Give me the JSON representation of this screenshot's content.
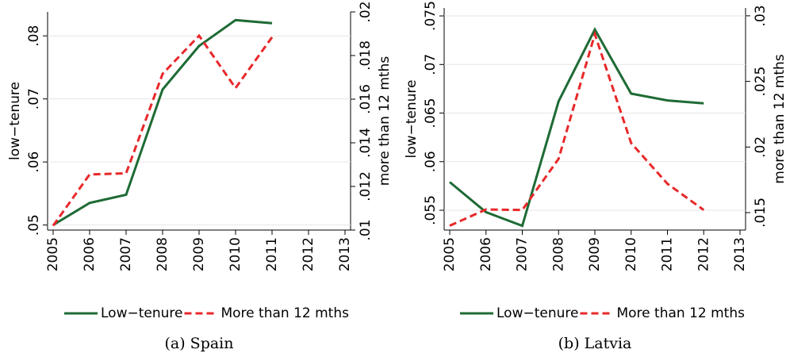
{
  "chart_data": [
    {
      "type": "line",
      "caption": "(a) Spain",
      "ylabel": "low−tenure",
      "y2label": "more than 12 mths",
      "x": [
        2005,
        2006,
        2007,
        2008,
        2009,
        2010,
        2011
      ],
      "xlim": [
        2005,
        2013
      ],
      "xticks": [
        2005,
        2006,
        2007,
        2008,
        2009,
        2010,
        2011,
        2012,
        2013
      ],
      "ylim": [
        0.0492,
        0.0838
      ],
      "yticks": [
        {
          "value": 0.05,
          "label": ".05"
        },
        {
          "value": 0.06,
          "label": ".06"
        },
        {
          "value": 0.07,
          "label": ".07"
        },
        {
          "value": 0.08,
          "label": ".08"
        }
      ],
      "y2lim": [
        0.01,
        0.02
      ],
      "y2ticks": [
        {
          "value": 0.01,
          "label": ".01"
        },
        {
          "value": 0.012,
          "label": ".012"
        },
        {
          "value": 0.014,
          "label": ".014"
        },
        {
          "value": 0.016,
          "label": ".016"
        },
        {
          "value": 0.018,
          "label": ".018"
        },
        {
          "value": 0.02,
          "label": ".02"
        }
      ],
      "grid": true,
      "series": [
        {
          "name": "Low−tenure",
          "color": "#1e6b35",
          "values": [
            0.05,
            0.0535,
            0.0548,
            0.0715,
            0.0784,
            0.0825,
            0.082
          ]
        },
        {
          "name": "More than 12 mths",
          "color": "#e8282a",
          "axis": "y2",
          "dashed": true,
          "values": [
            0.0102,
            0.01255,
            0.0126,
            0.01716,
            0.01891,
            0.01651,
            0.01884
          ]
        }
      ]
    },
    {
      "type": "line",
      "caption": "(b) Latvia",
      "ylabel": "low−tenure",
      "y2label": "more than 12 mths",
      "x": [
        2005,
        2006,
        2007,
        2008,
        2009,
        2010,
        2011,
        2012
      ],
      "xlim": [
        2005,
        2013
      ],
      "xticks": [
        2005,
        2006,
        2007,
        2008,
        2009,
        2010,
        2011,
        2012,
        2013
      ],
      "ylim": [
        0.05296,
        0.07582
      ],
      "yticks": [
        {
          "value": 0.055,
          "label": ".055"
        },
        {
          "value": 0.06,
          "label": ".06"
        },
        {
          "value": 0.065,
          "label": ".065"
        },
        {
          "value": 0.07,
          "label": ".07"
        },
        {
          "value": 0.075,
          "label": ".075"
        }
      ],
      "y2lim": [
        0.01367,
        0.0306
      ],
      "y2ticks": [
        {
          "value": 0.015,
          "label": ".015"
        },
        {
          "value": 0.02,
          "label": ".02"
        },
        {
          "value": 0.025,
          "label": ".025"
        },
        {
          "value": 0.03,
          "label": ".03"
        }
      ],
      "grid": true,
      "series": [
        {
          "name": "Low−tenure",
          "color": "#1e6b35",
          "values": [
            0.0579,
            0.0548,
            0.0534,
            0.0662,
            0.0736,
            0.067,
            0.0663,
            0.066
          ]
        },
        {
          "name": "More than 12 mths",
          "color": "#e8282a",
          "axis": "y2",
          "dashed": true,
          "values": [
            0.014,
            0.01524,
            0.0152,
            0.0191,
            0.0286,
            0.0203,
            0.0172,
            0.0152
          ]
        }
      ]
    }
  ]
}
